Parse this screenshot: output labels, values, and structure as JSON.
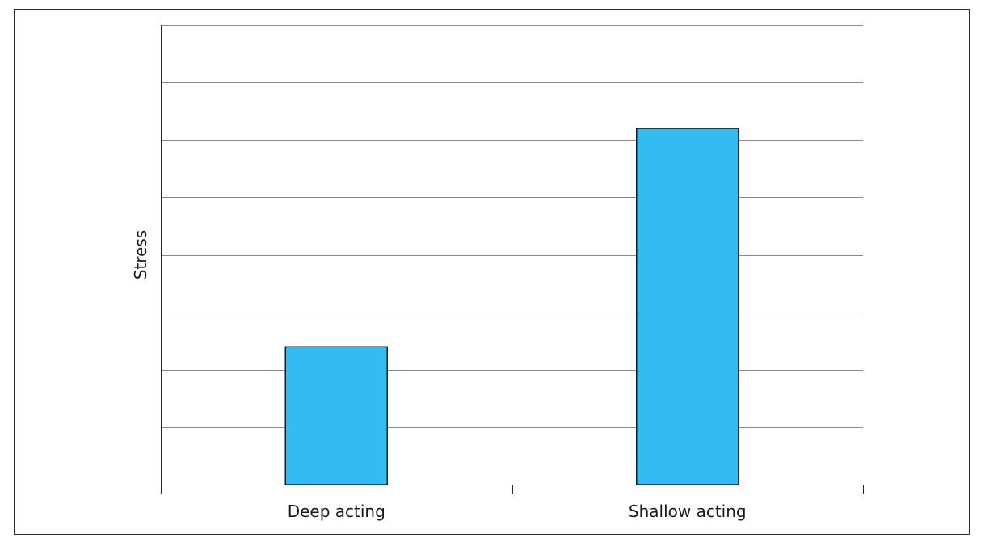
{
  "chart_data": {
    "type": "bar",
    "title": "",
    "xlabel": "",
    "ylabel": "Stress",
    "categories": [
      "Deep acting",
      "Shallow acting"
    ],
    "values": [
      2.4,
      6.2
    ],
    "ylim": [
      0,
      8
    ],
    "grid": true,
    "legend": "none",
    "colors": {
      "bar_fill": "#33bbf2",
      "bar_stroke": "#1a1a1a",
      "grid": "#8a8a8a",
      "axis": "#2a2a2a"
    }
  }
}
